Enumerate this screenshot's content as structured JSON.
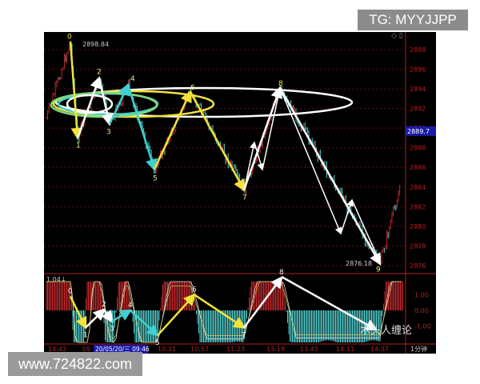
{
  "overlay": {
    "tg_label": "TG: MYYJJPP",
    "site_label": "www.724822.com",
    "watermark": "木头人缠论"
  },
  "colors": {
    "background": "#000000",
    "up": "#c0272d",
    "down": "#4fc9c9",
    "axis": "#b02020",
    "yellow": "#f2e23a",
    "cyan": "#3fd0d0",
    "white": "#ffffff",
    "current_price_bg": "#1a1aa8"
  },
  "chart_data": [
    {
      "type": "candlestick",
      "panel": "price",
      "ylim": [
        2875,
        2900
      ],
      "y_ticks": [
        2876,
        2878,
        2880,
        2882,
        2884,
        2886,
        2888,
        2890,
        2892,
        2894,
        2896,
        2898
      ],
      "current_price": "2889.7",
      "high_label": "2898.84",
      "low_label": "2876.18",
      "waves": [
        {
          "label": "0",
          "price": 2898.84
        },
        {
          "label": "1",
          "price": 2889.0
        },
        {
          "label": "2",
          "price": 2895.1
        },
        {
          "label": "3",
          "price": 2890.4
        },
        {
          "label": "4",
          "price": 2894.4
        },
        {
          "label": "5",
          "price": 2885.8
        },
        {
          "label": "6",
          "price": 2893.7
        },
        {
          "label": "7",
          "price": 2883.7
        },
        {
          "label": "8",
          "price": 2894.1
        },
        {
          "label": "9",
          "price": 2876.18
        }
      ]
    },
    {
      "type": "bar",
      "panel": "indicator",
      "value_label": "1.04↓",
      "ylim": [
        -1.5,
        1.5
      ],
      "y_ticks": [
        "1.00",
        "0.00",
        "-1.00"
      ],
      "waves": [
        {
          "label": "0",
          "value": 0.9
        },
        {
          "label": "1",
          "value": -1.1
        },
        {
          "label": "2",
          "value": 0.05
        },
        {
          "label": "3",
          "value": -0.7
        },
        {
          "label": "4",
          "value": 0.0
        },
        {
          "label": "5",
          "value": -1.6
        },
        {
          "label": "6",
          "value": 1.0
        },
        {
          "label": "7",
          "value": -1.1
        },
        {
          "label": "8",
          "value": 2.1
        }
      ],
      "x_ticks": [
        "14:43",
        "09",
        "10:31",
        "10:57",
        "11:23",
        "13:19",
        "13:45",
        "14:11",
        "14:37"
      ],
      "cursor_date": "20/05/20/三 09:46",
      "period": "1分钟"
    }
  ]
}
